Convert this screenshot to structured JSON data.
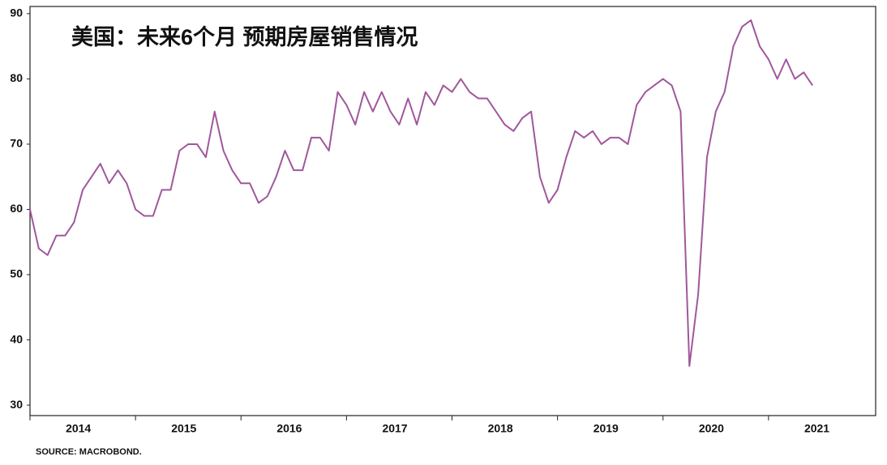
{
  "chart_data": {
    "type": "line",
    "title": "美国：未来6个月 预期房屋销售情况",
    "source": "SOURCE: MACROBOND.",
    "categories": [
      "2014",
      null,
      null,
      null,
      null,
      null,
      null,
      null,
      null,
      null,
      null,
      null,
      "2015",
      null,
      null,
      null,
      null,
      null,
      null,
      null,
      null,
      null,
      null,
      null,
      "2016",
      null,
      null,
      null,
      null,
      null,
      null,
      null,
      null,
      null,
      null,
      null,
      "2017",
      null,
      null,
      null,
      null,
      null,
      null,
      null,
      null,
      null,
      null,
      null,
      "2018",
      null,
      null,
      null,
      null,
      null,
      null,
      null,
      null,
      null,
      null,
      null,
      "2019",
      null,
      null,
      null,
      null,
      null,
      null,
      null,
      null,
      null,
      null,
      null,
      "2020",
      null,
      null,
      null,
      null,
      null,
      null,
      null,
      null,
      null,
      null,
      null,
      "2021",
      null,
      null,
      null,
      null,
      null
    ],
    "series": [
      {
        "name": "预期房屋销售",
        "color": "#a0579b",
        "values": [
          60,
          54,
          53,
          56,
          56,
          58,
          63,
          65,
          67,
          64,
          66,
          64,
          60,
          59,
          59,
          63,
          63,
          69,
          70,
          70,
          68,
          75,
          69,
          66,
          64,
          64,
          61,
          62,
          65,
          69,
          66,
          66,
          71,
          71,
          69,
          78,
          76,
          73,
          78,
          75,
          78,
          75,
          73,
          77,
          73,
          78,
          76,
          79,
          78,
          80,
          78,
          77,
          77,
          75,
          73,
          72,
          74,
          75,
          65,
          61,
          63,
          68,
          72,
          71,
          72,
          70,
          71,
          71,
          70,
          76,
          78,
          79,
          80,
          79,
          75,
          36,
          47,
          68,
          75,
          78,
          85,
          88,
          89,
          85,
          83,
          80,
          83,
          80,
          81,
          79
        ]
      }
    ],
    "ylim": [
      28.4,
      91.1
    ],
    "yticks": [
      30,
      40,
      50,
      60,
      70,
      80,
      90
    ],
    "grid": false
  }
}
